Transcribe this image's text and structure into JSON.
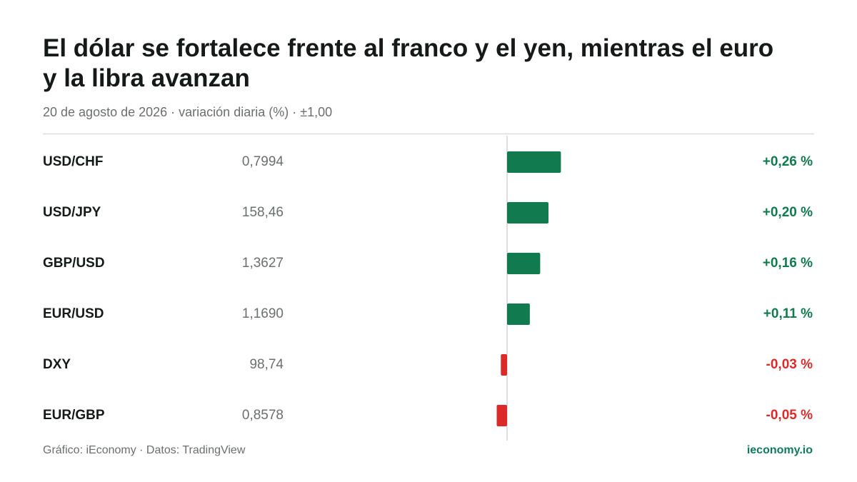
{
  "chart_data": {
    "type": "bar",
    "orientation": "horizontal",
    "title": "El dólar se fortalece frente al franco y el yen, mientras el euro y la libra avanzan",
    "subtitle": "20 de agosto de 2026 · variación diaria (%) · ±1,00",
    "categories": [
      "USD/CHF",
      "USD/JPY",
      "GBP/USD",
      "EUR/USD",
      "DXY",
      "EUR/GBP"
    ],
    "prices": [
      "0,7994",
      "158,46",
      "1,3627",
      "1,1690",
      "98,74",
      "0,8578"
    ],
    "values": [
      0.26,
      0.2,
      0.16,
      0.11,
      -0.03,
      -0.05
    ],
    "value_labels": [
      "+0,26 %",
      "+0,20 %",
      "+0,16 %",
      "+0,11 %",
      "-0,03 %",
      "-0,05 %"
    ],
    "xlim": [
      -1,
      1
    ],
    "positive_color": "#117a4e",
    "negative_color": "#dc2a2a",
    "source": "Gráfico: iEconomy · Datos: TradingView",
    "brand": "ieconomy.io"
  }
}
